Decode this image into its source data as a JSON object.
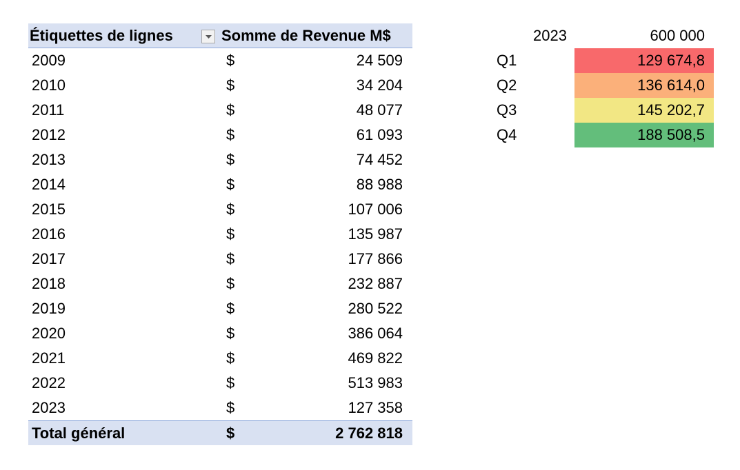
{
  "pivot": {
    "header": {
      "row_label": "Étiquettes de lignes",
      "value_label": "Somme de Revenue M$"
    },
    "rows": [
      {
        "year": "2009",
        "currency": "$",
        "value": "24 509"
      },
      {
        "year": "2010",
        "currency": "$",
        "value": "34 204"
      },
      {
        "year": "2011",
        "currency": "$",
        "value": "48 077"
      },
      {
        "year": "2012",
        "currency": "$",
        "value": "61 093"
      },
      {
        "year": "2013",
        "currency": "$",
        "value": "74 452"
      },
      {
        "year": "2014",
        "currency": "$",
        "value": "88 988"
      },
      {
        "year": "2015",
        "currency": "$",
        "value": "107 006"
      },
      {
        "year": "2016",
        "currency": "$",
        "value": "135 987"
      },
      {
        "year": "2017",
        "currency": "$",
        "value": "177 866"
      },
      {
        "year": "2018",
        "currency": "$",
        "value": "232 887"
      },
      {
        "year": "2019",
        "currency": "$",
        "value": "280 522"
      },
      {
        "year": "2020",
        "currency": "$",
        "value": "386 064"
      },
      {
        "year": "2021",
        "currency": "$",
        "value": "469 822"
      },
      {
        "year": "2022",
        "currency": "$",
        "value": "513 983"
      },
      {
        "year": "2023",
        "currency": "$",
        "value": "127 358"
      }
    ],
    "total": {
      "label": "Total général",
      "currency": "$",
      "value": "2 762 818"
    },
    "filter_icon": "dropdown-arrow-icon"
  },
  "forecast": {
    "year": "2023",
    "target": "600 000",
    "quarters": [
      {
        "label": "Q1",
        "value": "129 674,8",
        "color": "#f8696b"
      },
      {
        "label": "Q2",
        "value": "136 614,0",
        "color": "#fbb07a"
      },
      {
        "label": "Q3",
        "value": "145 202,7",
        "color": "#f2e784"
      },
      {
        "label": "Q4",
        "value": "188 508,5",
        "color": "#63be7b"
      }
    ]
  },
  "colors": {
    "pivot_header_bg": "#d9e1f2",
    "pivot_border": "#8ea9db"
  }
}
